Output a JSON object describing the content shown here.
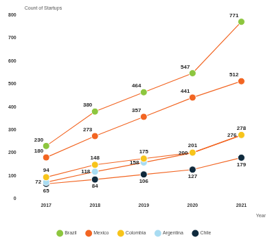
{
  "chart_data": {
    "type": "line",
    "y_label": "Count of Startups",
    "x_label": "Year",
    "categories": [
      "2017",
      "2018",
      "2019",
      "2020",
      "2021"
    ],
    "series": [
      {
        "name": "Brazil",
        "color": "#8dc63f",
        "values": [
          230,
          380,
          464,
          547,
          771
        ]
      },
      {
        "name": "Mexico",
        "color": "#f26522",
        "values": [
          180,
          273,
          357,
          441,
          512
        ]
      },
      {
        "name": "Colombia",
        "color": "#f7c41b",
        "values": [
          94,
          148,
          175,
          201,
          278
        ]
      },
      {
        "name": "Argentina",
        "color": "#a9dcf2",
        "values": [
          72,
          118,
          158,
          200,
          276
        ]
      },
      {
        "name": "Chile",
        "color": "#0f2a3d",
        "values": [
          65,
          84,
          106,
          127,
          179
        ]
      }
    ],
    "ylim": [
      0,
      800
    ],
    "yticks": [
      0,
      100,
      200,
      300,
      400,
      500,
      600,
      700,
      800
    ],
    "grid": false,
    "legend": "bottom",
    "data_labels": true,
    "marker": "circle"
  }
}
